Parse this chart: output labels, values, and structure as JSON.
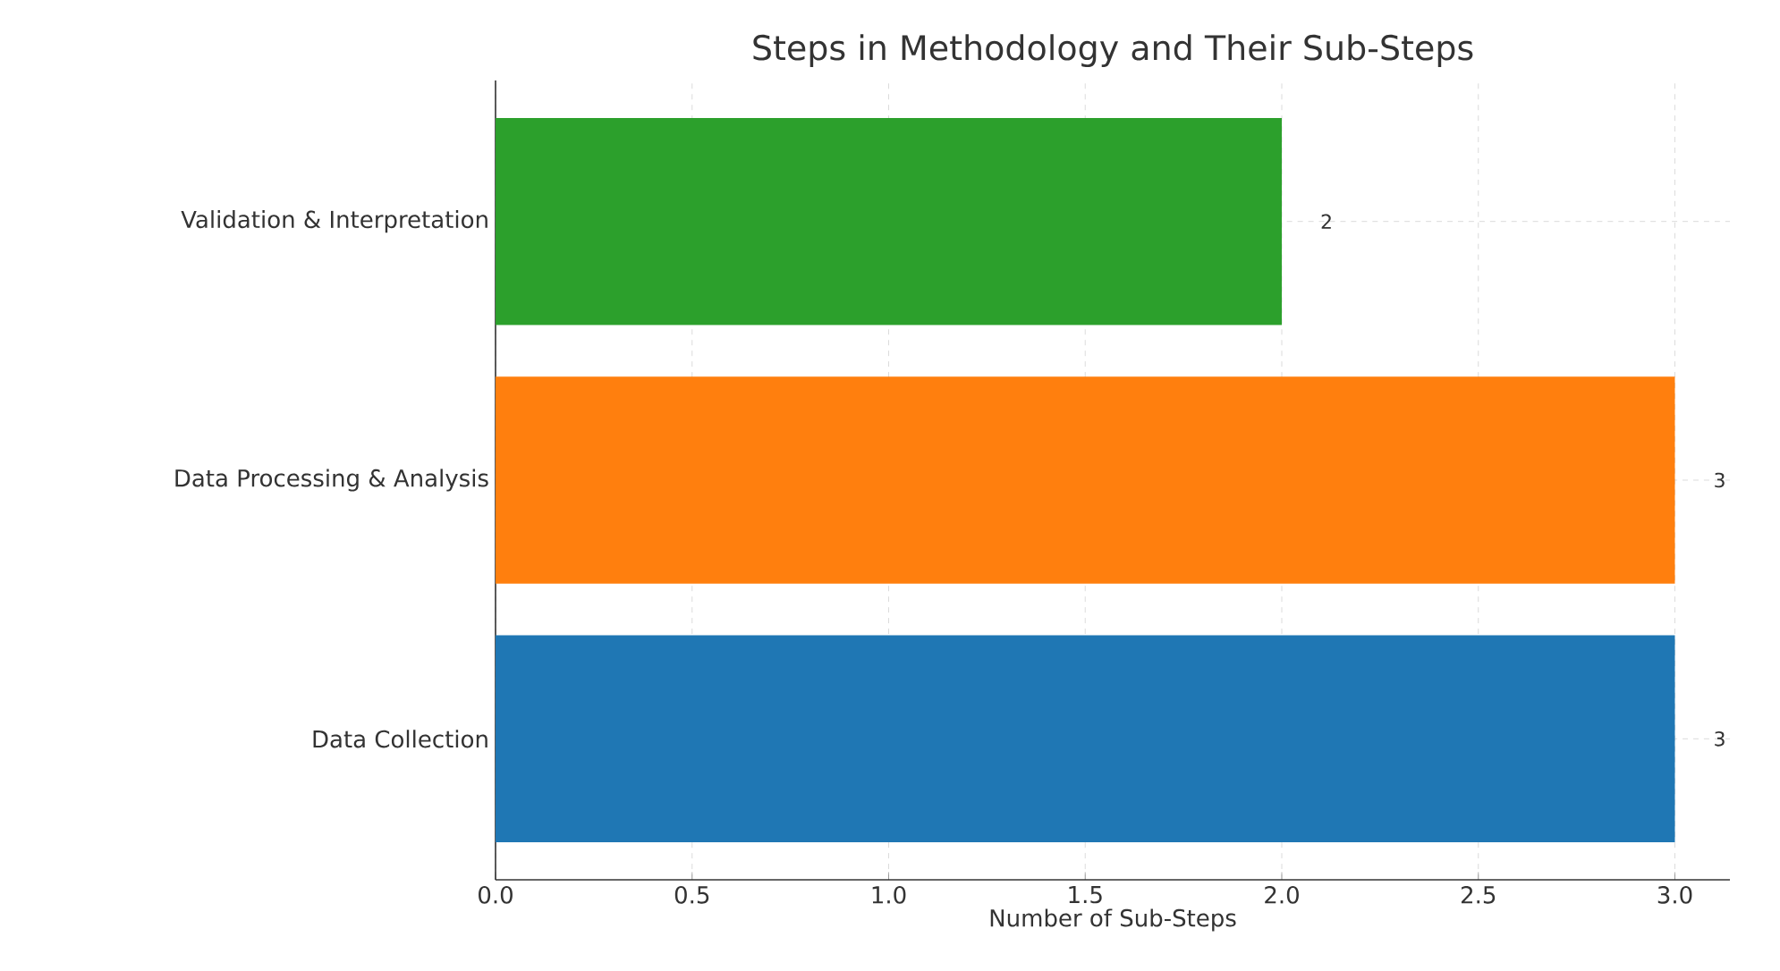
{
  "chart_data": {
    "type": "bar",
    "orientation": "horizontal",
    "title": "Steps in Methodology and Their Sub-Steps",
    "xlabel": "Number of Sub-Steps",
    "categories": [
      "Validation & Interpretation",
      "Data Processing & Analysis",
      "Data Collection"
    ],
    "values": [
      2,
      3,
      3
    ],
    "colors": [
      "#2ca02c",
      "#ff7f0e",
      "#1f77b4"
    ],
    "xlim": [
      0,
      3.14
    ],
    "xticks": [
      {
        "value": 0,
        "label": "0.0"
      },
      0.5,
      {
        "value": 1,
        "label": "1.0"
      },
      1.5,
      {
        "value": 2,
        "label": "2.0"
      },
      2.5,
      {
        "value": 3,
        "label": "3.0"
      }
    ],
    "grid": true,
    "data_labels": true
  }
}
